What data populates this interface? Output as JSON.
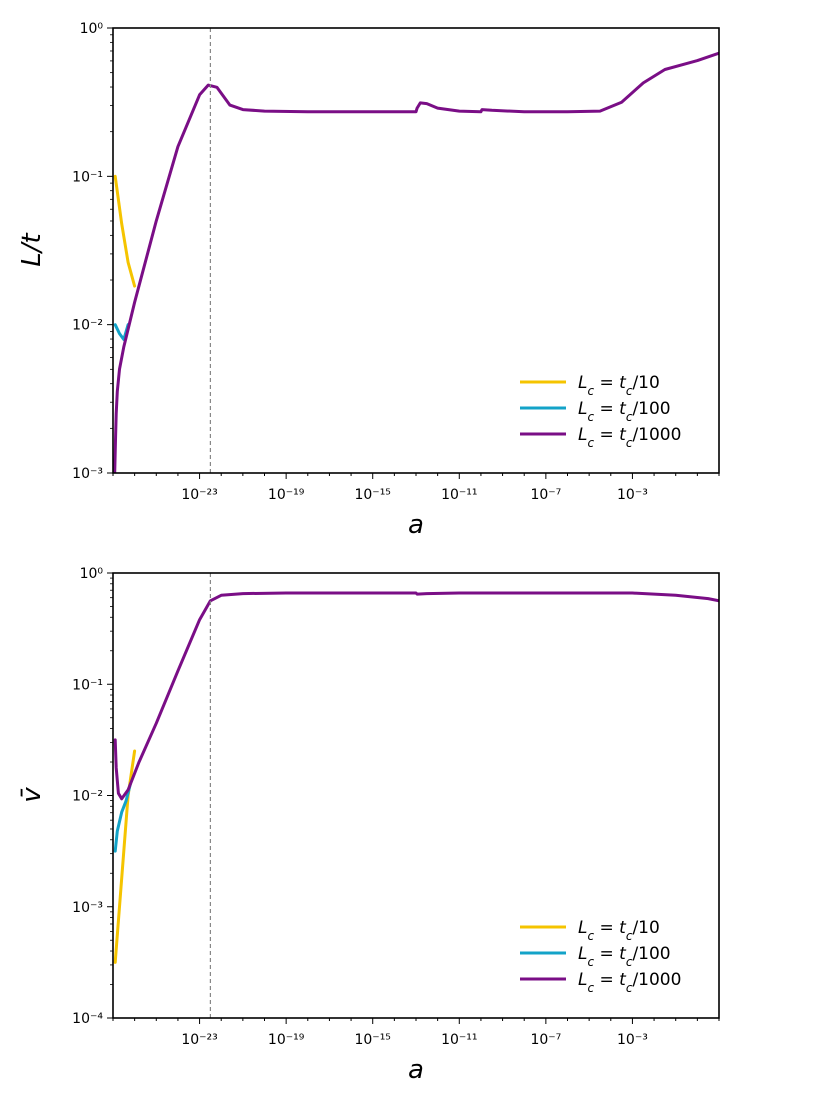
{
  "chart_data": [
    {
      "type": "line",
      "xlabel": "a",
      "ylabel": "L/t",
      "xscale": "log",
      "yscale": "log",
      "xlim_log10": [
        -27,
        1
      ],
      "ylim_log10": [
        -3,
        0
      ],
      "xtick_labels": [
        "10⁻²³",
        "10⁻¹⁹",
        "10⁻¹⁵",
        "10⁻¹¹",
        "10⁻⁷",
        "10⁻³"
      ],
      "xtick_values_log10": [
        -23,
        -19,
        -15,
        -11,
        -7,
        -3
      ],
      "ytick_labels": [
        "10⁻³",
        "10⁻²",
        "10⁻¹",
        "10⁰"
      ],
      "ytick_values_log10": [
        -3,
        -2,
        -1,
        0
      ],
      "vline_log10": -22.5,
      "legend_position": "lower right",
      "series": [
        {
          "name": "Lc = tc/10",
          "label_html": "<tspan font-style='italic'>L</tspan><tspan baseline-shift='sub' font-size='12' font-style='italic'>c</tspan> = <tspan font-style='italic'>t</tspan><tspan baseline-shift='sub' font-size='12' font-style='italic'>c</tspan>/10",
          "color": "#f5c400",
          "points_log10": [
            [
              -26.9,
              -1.0
            ],
            [
              -26.6,
              -1.32
            ],
            [
              -26.3,
              -1.58
            ],
            [
              -26.0,
              -1.74
            ]
          ]
        },
        {
          "name": "Lc = tc/100",
          "label_html": "<tspan font-style='italic'>L</tspan><tspan baseline-shift='sub' font-size='12' font-style='italic'>c</tspan> = <tspan font-style='italic'>t</tspan><tspan baseline-shift='sub' font-size='12' font-style='italic'>c</tspan>/100",
          "color": "#13a3c8",
          "points_log10": [
            [
              -26.9,
              -2.0
            ],
            [
              -26.7,
              -2.06
            ],
            [
              -26.5,
              -2.1
            ],
            [
              -26.3,
              -2.0
            ]
          ]
        },
        {
          "name": "Lc = tc/1000",
          "label_html": "<tspan font-style='italic'>L</tspan><tspan baseline-shift='sub' font-size='12' font-style='italic'>c</tspan> = <tspan font-style='italic'>t</tspan><tspan baseline-shift='sub' font-size='12' font-style='italic'>c</tspan>/1000",
          "color": "#7a0e86",
          "points_log10": [
            [
              -26.92,
              -3.0
            ],
            [
              -26.88,
              -2.75
            ],
            [
              -26.85,
              -2.6
            ],
            [
              -26.8,
              -2.45
            ],
            [
              -26.7,
              -2.3
            ],
            [
              -26.5,
              -2.15
            ],
            [
              -26.0,
              -1.85
            ],
            [
              -25.0,
              -1.3
            ],
            [
              -24.0,
              -0.8
            ],
            [
              -23.0,
              -0.45
            ],
            [
              -22.6,
              -0.385
            ],
            [
              -22.2,
              -0.4
            ],
            [
              -21.6,
              -0.52
            ],
            [
              -21.0,
              -0.55
            ],
            [
              -20.0,
              -0.56
            ],
            [
              -18.0,
              -0.565
            ],
            [
              -16.0,
              -0.565
            ],
            [
              -14.0,
              -0.565
            ],
            [
              -13.0,
              -0.565
            ],
            [
              -12.95,
              -0.54
            ],
            [
              -12.8,
              -0.505
            ],
            [
              -12.5,
              -0.51
            ],
            [
              -12.0,
              -0.54
            ],
            [
              -11.0,
              -0.56
            ],
            [
              -10.0,
              -0.565
            ],
            [
              -9.95,
              -0.55
            ],
            [
              -9.5,
              -0.555
            ],
            [
              -8.0,
              -0.565
            ],
            [
              -6.0,
              -0.565
            ],
            [
              -4.5,
              -0.56
            ],
            [
              -3.5,
              -0.5
            ],
            [
              -2.5,
              -0.37
            ],
            [
              -1.5,
              -0.28
            ],
            [
              -0.5,
              -0.24
            ],
            [
              0.0,
              -0.22
            ],
            [
              1.0,
              -0.17
            ]
          ]
        }
      ]
    },
    {
      "type": "line",
      "xlabel": "a",
      "ylabel": "v̄",
      "xscale": "log",
      "yscale": "log",
      "xlim_log10": [
        -27,
        1
      ],
      "ylim_log10": [
        -4,
        0
      ],
      "xtick_labels": [
        "10⁻²³",
        "10⁻¹⁹",
        "10⁻¹⁵",
        "10⁻¹¹",
        "10⁻⁷",
        "10⁻³"
      ],
      "xtick_values_log10": [
        -23,
        -19,
        -15,
        -11,
        -7,
        -3
      ],
      "ytick_labels": [
        "10⁻⁴",
        "10⁻³",
        "10⁻²",
        "10⁻¹",
        "10⁰"
      ],
      "ytick_values_log10": [
        -4,
        -3,
        -2,
        -1,
        0
      ],
      "vline_log10": -22.5,
      "legend_position": "lower right",
      "series": [
        {
          "name": "Lc = tc/10",
          "label_html": "<tspan font-style='italic'>L</tspan><tspan baseline-shift='sub' font-size='12' font-style='italic'>c</tspan> = <tspan font-style='italic'>t</tspan><tspan baseline-shift='sub' font-size='12' font-style='italic'>c</tspan>/10",
          "color": "#f5c400",
          "points_log10": [
            [
              -26.9,
              -3.5
            ],
            [
              -26.7,
              -3.0
            ],
            [
              -26.5,
              -2.5
            ],
            [
              -26.3,
              -2.0
            ],
            [
              -26.0,
              -1.6
            ]
          ]
        },
        {
          "name": "Lc = tc/100",
          "label_html": "<tspan font-style='italic'>L</tspan><tspan baseline-shift='sub' font-size='12' font-style='italic'>c</tspan> = <tspan font-style='italic'>t</tspan><tspan baseline-shift='sub' font-size='12' font-style='italic'>c</tspan>/100",
          "color": "#13a3c8",
          "points_log10": [
            [
              -26.9,
              -2.5
            ],
            [
              -26.8,
              -2.32
            ],
            [
              -26.6,
              -2.15
            ],
            [
              -26.4,
              -2.05
            ],
            [
              -26.2,
              -1.9
            ]
          ]
        },
        {
          "name": "Lc = tc/1000",
          "label_html": "<tspan font-style='italic'>L</tspan><tspan baseline-shift='sub' font-size='12' font-style='italic'>c</tspan> = <tspan font-style='italic'>t</tspan><tspan baseline-shift='sub' font-size='12' font-style='italic'>c</tspan>/1000",
          "color": "#7a0e86",
          "points_log10": [
            [
              -26.9,
              -1.5
            ],
            [
              -26.85,
              -1.75
            ],
            [
              -26.75,
              -1.98
            ],
            [
              -26.6,
              -2.03
            ],
            [
              -26.3,
              -1.95
            ],
            [
              -25.8,
              -1.7
            ],
            [
              -25.0,
              -1.35
            ],
            [
              -24.0,
              -0.88
            ],
            [
              -23.0,
              -0.42
            ],
            [
              -22.5,
              -0.25
            ],
            [
              -22.0,
              -0.2
            ],
            [
              -21.0,
              -0.185
            ],
            [
              -19.0,
              -0.18
            ],
            [
              -16.0,
              -0.18
            ],
            [
              -13.0,
              -0.18
            ],
            [
              -12.95,
              -0.19
            ],
            [
              -12.5,
              -0.185
            ],
            [
              -11.0,
              -0.18
            ],
            [
              -9.0,
              -0.18
            ],
            [
              -6.0,
              -0.18
            ],
            [
              -3.0,
              -0.18
            ],
            [
              -1.0,
              -0.2
            ],
            [
              0.5,
              -0.23
            ],
            [
              1.0,
              -0.25
            ]
          ]
        }
      ]
    }
  ]
}
